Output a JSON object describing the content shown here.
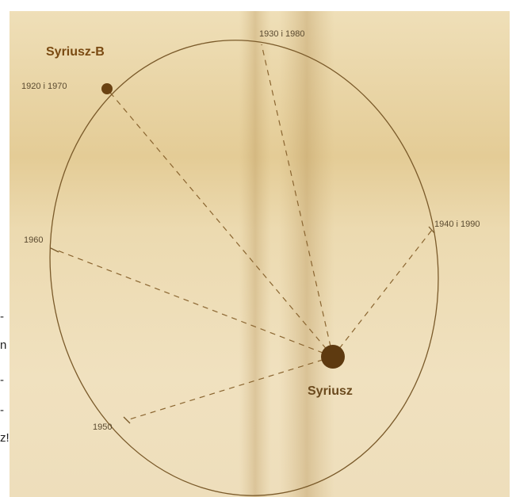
{
  "labels": {
    "companion": "Syriusz-B",
    "main_star": "Syriusz",
    "epoch_1920": "1920  i  1970",
    "epoch_1930": "1930  i  1980",
    "epoch_1940": "1940  i  1990",
    "epoch_1960": "1960",
    "epoch_1950": "1950"
  },
  "side_text": [
    "-",
    "n",
    "-",
    "-",
    "z!"
  ],
  "colors": {
    "paper": "#e8d5a6",
    "paper_light": "#f3e7c6",
    "ink": "#6b4a1e",
    "dot": "#6a4212",
    "label_bold": "#7a4a12"
  }
}
